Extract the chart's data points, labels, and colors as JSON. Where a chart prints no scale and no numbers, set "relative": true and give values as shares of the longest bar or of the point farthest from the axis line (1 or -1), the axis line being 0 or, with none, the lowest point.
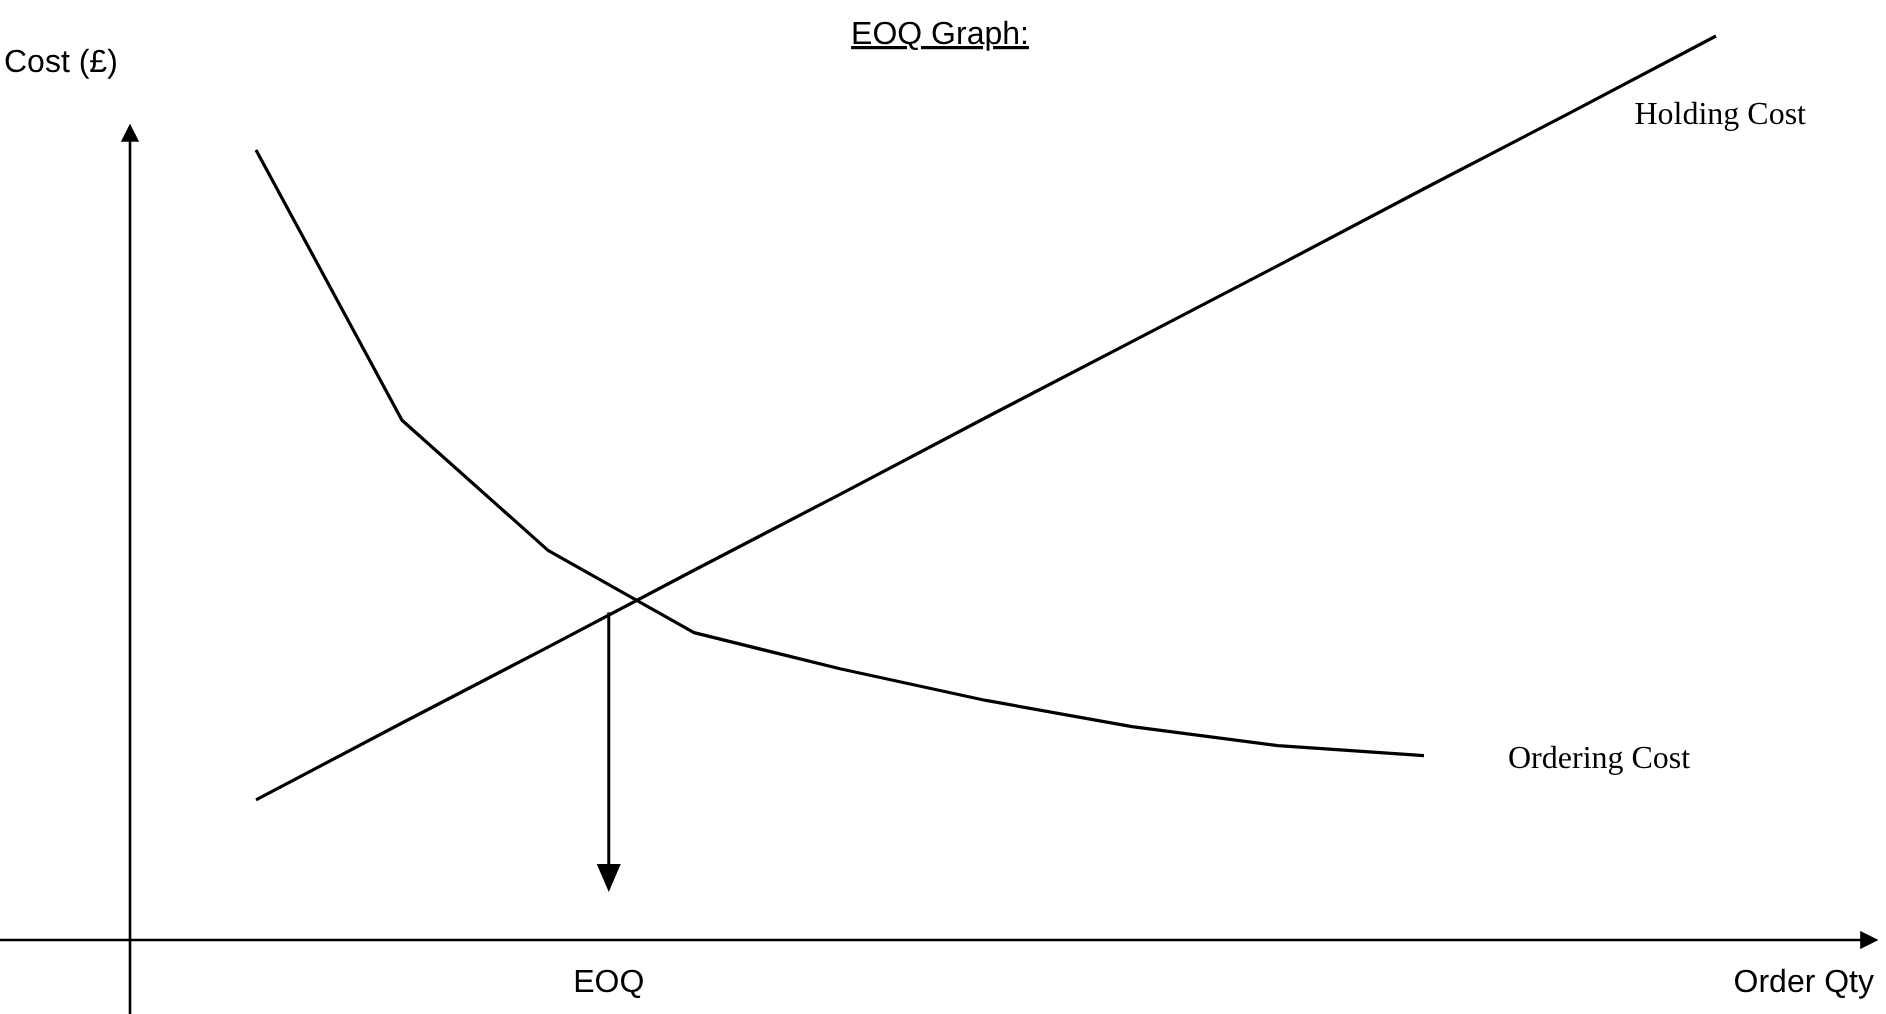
{
  "chart_data": {
    "type": "line",
    "title": "EOQ Graph:",
    "xlabel": "Order Qty",
    "ylabel": "Cost (£)",
    "relative": true,
    "marker": "none",
    "line_style": "solid",
    "categories": [
      null,
      null,
      null,
      null,
      null,
      null,
      null,
      null,
      null,
      null,
      null
    ],
    "series": [
      {
        "name": "Holding Cost",
        "color": "#000000",
        "values": [
          0.155,
          0.24,
          0.324,
          0.409,
          0.493,
          0.578,
          0.662,
          0.746,
          0.831,
          0.915,
          1.0
        ]
      },
      {
        "name": "Ordering Cost",
        "color": "#000000",
        "values": [
          0.874,
          0.575,
          0.431,
          0.34,
          0.3,
          0.265,
          0.236,
          0.215,
          0.204,
          null,
          null
        ]
      }
    ],
    "annotations": [
      "EOQ"
    ]
  }
}
